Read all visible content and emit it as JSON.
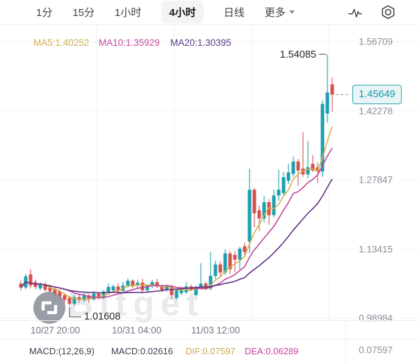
{
  "tabbar": {
    "tabs": [
      {
        "label": "1分",
        "active": false
      },
      {
        "label": "15分",
        "active": false
      },
      {
        "label": "1小时",
        "active": false
      },
      {
        "label": "4小时",
        "active": true
      },
      {
        "label": "日线",
        "active": false
      },
      {
        "label": "更多",
        "active": false,
        "dropdown": true
      }
    ],
    "icons": {
      "indicator": "pulse-line",
      "settings": "gear-hexagon"
    }
  },
  "indicators": {
    "ma5": {
      "label": "MA5:1.40252",
      "color": "#d0ae4e"
    },
    "ma10": {
      "label": "MA10:1.35929",
      "color": "#c4489f"
    },
    "ma20": {
      "label": "MA20:1.30395",
      "color": "#5b3a86"
    }
  },
  "macd_row": {
    "params": "MACD:(12,26,9)",
    "macd": "MACD:0.02616",
    "dif": "DIF:0.07597",
    "dea": "DEA:0.06289"
  },
  "watermark": {
    "text": "Bitget"
  },
  "chart_data": {
    "type": "candlestick",
    "timeframe": "4小时",
    "title": "",
    "ylim": [
      0.98984,
      1.56709
    ],
    "grid": true,
    "y_axis_labels": [
      "1.56709",
      "1.42278",
      "1.27847",
      "1.13415",
      "0.98984"
    ],
    "sub_panel_axis_label": "0.07597",
    "x_axis_labels": [
      "10/27 20:00",
      "10/31 04:00",
      "11/03 12:00"
    ],
    "current_price": "1.45649",
    "high_marker": {
      "value": "1.54085",
      "index": 63
    },
    "low_marker": {
      "value": "1.01608",
      "index": 10
    },
    "ma_periods": [
      5,
      10,
      20
    ],
    "ma_colors": [
      "#d4b04c",
      "#c2459c",
      "#5e2d84"
    ],
    "up_color": "#1d9fae",
    "down_color": "#d7504d",
    "ohlc": [
      [
        1.062,
        1.068,
        1.048,
        1.054
      ],
      [
        1.054,
        1.082,
        1.05,
        1.077
      ],
      [
        1.081,
        1.092,
        1.052,
        1.058
      ],
      [
        1.065,
        1.07,
        1.05,
        1.055
      ],
      [
        1.052,
        1.065,
        1.048,
        1.061
      ],
      [
        1.061,
        1.065,
        1.045,
        1.049
      ],
      [
        1.055,
        1.06,
        1.042,
        1.046
      ],
      [
        1.051,
        1.056,
        1.035,
        1.04
      ],
      [
        1.046,
        1.05,
        1.03,
        1.035
      ],
      [
        1.038,
        1.042,
        1.022,
        1.028
      ],
      [
        1.032,
        1.036,
        1.01608,
        1.02
      ],
      [
        1.02,
        1.038,
        1.016,
        1.034
      ],
      [
        1.034,
        1.038,
        1.022,
        1.027
      ],
      [
        1.027,
        1.042,
        1.024,
        1.037
      ],
      [
        1.037,
        1.04,
        1.021,
        1.029
      ],
      [
        1.029,
        1.047,
        1.026,
        1.041
      ],
      [
        1.041,
        1.044,
        1.028,
        1.033
      ],
      [
        1.033,
        1.048,
        1.03,
        1.045
      ],
      [
        1.045,
        1.062,
        1.042,
        1.055
      ],
      [
        1.048,
        1.06,
        1.044,
        1.056
      ],
      [
        1.056,
        1.063,
        1.042,
        1.047
      ],
      [
        1.047,
        1.066,
        1.044,
        1.058
      ],
      [
        1.058,
        1.073,
        1.054,
        1.068
      ],
      [
        1.068,
        1.071,
        1.052,
        1.058
      ],
      [
        1.058,
        1.07,
        1.05,
        1.064
      ],
      [
        1.064,
        1.072,
        1.042,
        1.048
      ],
      [
        1.048,
        1.06,
        1.044,
        1.058
      ],
      [
        1.058,
        1.07,
        1.052,
        1.065
      ],
      [
        1.065,
        1.072,
        1.052,
        1.056
      ],
      [
        1.056,
        1.06,
        1.044,
        1.049
      ],
      [
        1.049,
        1.06,
        1.045,
        1.057
      ],
      [
        1.057,
        1.06,
        1.03,
        1.038
      ],
      [
        1.032,
        1.05,
        1.028,
        1.048
      ],
      [
        1.042,
        1.054,
        1.038,
        1.05
      ],
      [
        1.044,
        1.065,
        1.04,
        1.056
      ],
      [
        1.056,
        1.06,
        1.046,
        1.048
      ],
      [
        1.038,
        1.058,
        1.035,
        1.052
      ],
      [
        1.052,
        1.105,
        1.05,
        1.062
      ],
      [
        1.062,
        1.066,
        1.048,
        1.052
      ],
      [
        1.052,
        1.128,
        1.048,
        1.078
      ],
      [
        1.078,
        1.11,
        1.072,
        1.102
      ],
      [
        1.102,
        1.108,
        1.075,
        1.085
      ],
      [
        1.085,
        1.133,
        1.08,
        1.125
      ],
      [
        1.125,
        1.13,
        1.082,
        1.092
      ],
      [
        1.122,
        1.13,
        1.085,
        1.112
      ],
      [
        1.112,
        1.139,
        1.092,
        1.135
      ],
      [
        1.14,
        1.148,
        1.118,
        1.128
      ],
      [
        1.15,
        1.302,
        1.125,
        1.258
      ],
      [
        1.258,
        1.262,
        1.18,
        1.209
      ],
      [
        1.215,
        1.225,
        1.172,
        1.198
      ],
      [
        1.198,
        1.245,
        1.19,
        1.232
      ],
      [
        1.232,
        1.238,
        1.185,
        1.205
      ],
      [
        1.205,
        1.258,
        1.2,
        1.246
      ],
      [
        1.246,
        1.3,
        1.235,
        1.258
      ],
      [
        1.251,
        1.295,
        1.245,
        1.284
      ],
      [
        1.277,
        1.312,
        1.27,
        1.294
      ],
      [
        1.291,
        1.327,
        1.285,
        1.317
      ],
      [
        1.317,
        1.322,
        1.265,
        1.298
      ],
      [
        1.302,
        1.378,
        1.285,
        1.29
      ],
      [
        1.29,
        1.36,
        1.282,
        1.305
      ],
      [
        1.312,
        1.33,
        1.295,
        1.298
      ],
      [
        1.305,
        1.315,
        1.272,
        1.296
      ],
      [
        1.296,
        1.445,
        1.285,
        1.437
      ],
      [
        1.417,
        1.54085,
        1.398,
        1.461
      ],
      [
        1.478,
        1.492,
        1.421,
        1.45649
      ]
    ]
  }
}
